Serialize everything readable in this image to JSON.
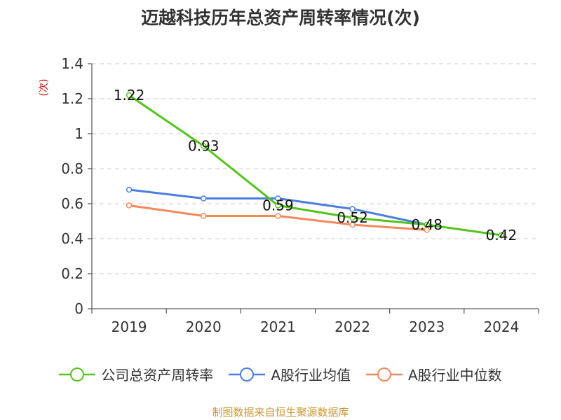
{
  "source": "制图数据来自恒生聚源数据库",
  "colors": {
    "grid": "#cccccc",
    "axis": "#333333"
  },
  "chart_data": {
    "type": "line",
    "title": "迈越科技历年总资产周转率情况(次)",
    "ylabel": "(次)",
    "xlabel": "",
    "categories": [
      "2019",
      "2020",
      "2021",
      "2022",
      "2023",
      "2024"
    ],
    "ylim": [
      0,
      1.4
    ],
    "yticks": [
      "0",
      "0.2",
      "0.4",
      "0.6",
      "0.8",
      "1",
      "1.2",
      "1.4"
    ],
    "grid": true,
    "legend_position": "bottom",
    "series": [
      {
        "name": "公司总资产周转率",
        "color": "#52c41a",
        "values": [
          1.22,
          0.93,
          0.59,
          0.52,
          0.48,
          0.42
        ],
        "labels": [
          "1.22",
          "0.93",
          "0.59",
          "0.52",
          "0.48",
          "0.42"
        ]
      },
      {
        "name": "A股行业均值",
        "color": "#4a7de0",
        "values": [
          0.68,
          0.63,
          0.63,
          0.57,
          0.48,
          null
        ]
      },
      {
        "name": "A股行业中位数",
        "color": "#f5875a",
        "values": [
          0.59,
          0.53,
          0.53,
          0.48,
          0.45,
          null
        ]
      }
    ]
  }
}
